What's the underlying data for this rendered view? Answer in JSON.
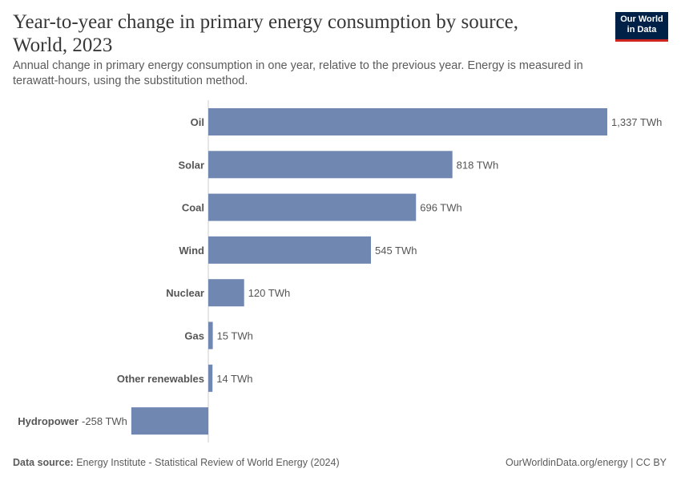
{
  "header": {
    "title": "Year-to-year change in primary energy consumption by source, World, 2023",
    "subtitle": "Annual change in primary energy consumption in one year, relative to the previous year. Energy is measured in terawatt-hours, using the substitution method."
  },
  "logo": {
    "line1": "Our World",
    "line2": "in Data"
  },
  "footer": {
    "source_label": "Data source:",
    "source_text": "Energy Institute - Statistical Review of World Energy (2024)",
    "right_text": "OurWorldinData.org/energy | CC BY"
  },
  "colors": {
    "bar": "#6f87b1",
    "axis": "#cccccc",
    "brand": "#002147",
    "brand_accent": "#ce261e"
  },
  "chart_data": {
    "type": "bar",
    "orientation": "horizontal",
    "title": "Year-to-year change in primary energy consumption by source, World, 2023",
    "unit": "TWh",
    "categories": [
      "Oil",
      "Solar",
      "Coal",
      "Wind",
      "Nuclear",
      "Gas",
      "Other renewables",
      "Hydropower"
    ],
    "values": [
      1337,
      818,
      696,
      545,
      120,
      15,
      14,
      -258
    ],
    "value_labels": [
      "1,337 TWh",
      "818 TWh",
      "696 TWh",
      "545 TWh",
      "120 TWh",
      "15 TWh",
      "14 TWh",
      "-258 TWh"
    ],
    "xlim": [
      -258,
      1337
    ],
    "grid": false,
    "legend": "none"
  }
}
